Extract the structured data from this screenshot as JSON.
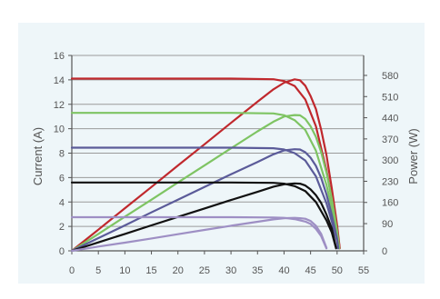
{
  "chart_data": {
    "type": "line",
    "title": "",
    "xlabel": "",
    "ylabel": "Current (A)",
    "y2label": "Power (W)",
    "xlim": [
      0,
      55
    ],
    "ylim": [
      0,
      16
    ],
    "y2lim": [
      0,
      646
    ],
    "xticks": [
      "0",
      "5",
      "10",
      "15",
      "20",
      "25",
      "30",
      "35",
      "40",
      "45",
      "50",
      "55"
    ],
    "yticks": [
      "0",
      "2",
      "4",
      "6",
      "8",
      "10",
      "12",
      "14",
      "16"
    ],
    "y2ticks": [
      {
        "label": "0",
        "value": 0
      },
      {
        "label": "90",
        "value": 90
      },
      {
        "label": "160",
        "value": 160
      },
      {
        "label": "230",
        "value": 230
      },
      {
        "label": "300",
        "value": 300
      },
      {
        "label": "370",
        "value": 370
      },
      {
        "label": "440",
        "value": 440
      },
      {
        "label": "510",
        "value": 510
      },
      {
        "label": "580",
        "value": 580
      }
    ],
    "grid": "horizontal",
    "legend": "none",
    "series": [
      {
        "color": "#c0282d",
        "iv": [
          [
            0,
            14.1
          ],
          [
            30,
            14.1
          ],
          [
            38,
            14.05
          ],
          [
            40,
            13.9
          ],
          [
            42,
            13.5
          ],
          [
            44,
            12.4
          ],
          [
            46,
            10.2
          ],
          [
            48,
            6.6
          ],
          [
            49,
            4.2
          ],
          [
            50,
            1.7
          ],
          [
            50.5,
            0.2
          ]
        ],
        "pv": [
          [
            0,
            0
          ],
          [
            5,
            70
          ],
          [
            10,
            141
          ],
          [
            15,
            211
          ],
          [
            20,
            282
          ],
          [
            25,
            352
          ],
          [
            30,
            423
          ],
          [
            35,
            493
          ],
          [
            38,
            534
          ],
          [
            40,
            556
          ],
          [
            42,
            567
          ],
          [
            43,
            564
          ],
          [
            44,
            546
          ],
          [
            45,
            512
          ],
          [
            46,
            469
          ],
          [
            47,
            400
          ],
          [
            48,
            317
          ],
          [
            49,
            206
          ],
          [
            50,
            85
          ],
          [
            50.5,
            10
          ]
        ]
      },
      {
        "color": "#7ec463",
        "iv": [
          [
            0,
            11.3
          ],
          [
            30,
            11.3
          ],
          [
            38,
            11.25
          ],
          [
            40,
            11.1
          ],
          [
            42,
            10.7
          ],
          [
            44,
            9.9
          ],
          [
            46,
            8.2
          ],
          [
            48,
            5.4
          ],
          [
            49,
            3.5
          ],
          [
            50,
            1.3
          ],
          [
            50.4,
            0.2
          ]
        ],
        "pv": [
          [
            0,
            0
          ],
          [
            5,
            56
          ],
          [
            10,
            113
          ],
          [
            15,
            169
          ],
          [
            20,
            226
          ],
          [
            25,
            282
          ],
          [
            30,
            339
          ],
          [
            35,
            395
          ],
          [
            38,
            427
          ],
          [
            40,
            444
          ],
          [
            42,
            449
          ],
          [
            43,
            448
          ],
          [
            44,
            436
          ],
          [
            45,
            412
          ],
          [
            46,
            377
          ],
          [
            47,
            326
          ],
          [
            48,
            259
          ],
          [
            49,
            172
          ],
          [
            50,
            65
          ],
          [
            50.4,
            10
          ]
        ]
      },
      {
        "color": "#5b5b99",
        "iv": [
          [
            0,
            8.45
          ],
          [
            30,
            8.45
          ],
          [
            38,
            8.4
          ],
          [
            40,
            8.3
          ],
          [
            42,
            8.0
          ],
          [
            44,
            7.4
          ],
          [
            46,
            6.1
          ],
          [
            48,
            3.9
          ],
          [
            49,
            2.4
          ],
          [
            50,
            0.8
          ],
          [
            50.2,
            0.2
          ]
        ],
        "pv": [
          [
            0,
            0
          ],
          [
            5,
            42
          ],
          [
            10,
            84
          ],
          [
            15,
            127
          ],
          [
            20,
            169
          ],
          [
            25,
            211
          ],
          [
            30,
            253
          ],
          [
            35,
            294
          ],
          [
            38,
            319
          ],
          [
            40,
            332
          ],
          [
            42,
            336
          ],
          [
            43,
            335
          ],
          [
            44,
            326
          ],
          [
            45,
            308
          ],
          [
            46,
            281
          ],
          [
            47,
            241
          ],
          [
            48,
            187
          ],
          [
            49,
            118
          ],
          [
            50,
            40
          ],
          [
            50.2,
            10
          ]
        ]
      },
      {
        "color": "#111111",
        "iv": [
          [
            0,
            5.6
          ],
          [
            30,
            5.6
          ],
          [
            38,
            5.57
          ],
          [
            40,
            5.5
          ],
          [
            42,
            5.3
          ],
          [
            44,
            4.9
          ],
          [
            46,
            4.0
          ],
          [
            48,
            2.5
          ],
          [
            49,
            1.5
          ],
          [
            49.8,
            0.2
          ]
        ],
        "pv": [
          [
            0,
            0
          ],
          [
            5,
            28
          ],
          [
            10,
            56
          ],
          [
            15,
            84
          ],
          [
            20,
            112
          ],
          [
            25,
            140
          ],
          [
            30,
            168
          ],
          [
            35,
            195
          ],
          [
            38,
            212
          ],
          [
            40,
            220
          ],
          [
            42,
            223
          ],
          [
            43,
            222
          ],
          [
            44,
            216
          ],
          [
            45,
            203
          ],
          [
            46,
            184
          ],
          [
            47,
            158
          ],
          [
            48,
            120
          ],
          [
            49,
            74
          ],
          [
            49.8,
            10
          ]
        ]
      },
      {
        "color": "#9e8fc4",
        "iv": [
          [
            0,
            2.75
          ],
          [
            30,
            2.75
          ],
          [
            38,
            2.73
          ],
          [
            40,
            2.7
          ],
          [
            42,
            2.6
          ],
          [
            44,
            2.4
          ],
          [
            45,
            2.2
          ],
          [
            46,
            1.8
          ],
          [
            47,
            1.2
          ],
          [
            48,
            0.2
          ]
        ],
        "pv": [
          [
            0,
            0
          ],
          [
            5,
            14
          ],
          [
            10,
            27
          ],
          [
            15,
            41
          ],
          [
            20,
            55
          ],
          [
            25,
            69
          ],
          [
            30,
            83
          ],
          [
            35,
            96
          ],
          [
            38,
            104
          ],
          [
            40,
            108
          ],
          [
            42,
            109
          ],
          [
            43,
            108
          ],
          [
            44,
            106
          ],
          [
            45,
            99
          ],
          [
            46,
            83
          ],
          [
            47,
            56
          ],
          [
            48,
            10
          ]
        ]
      }
    ]
  }
}
